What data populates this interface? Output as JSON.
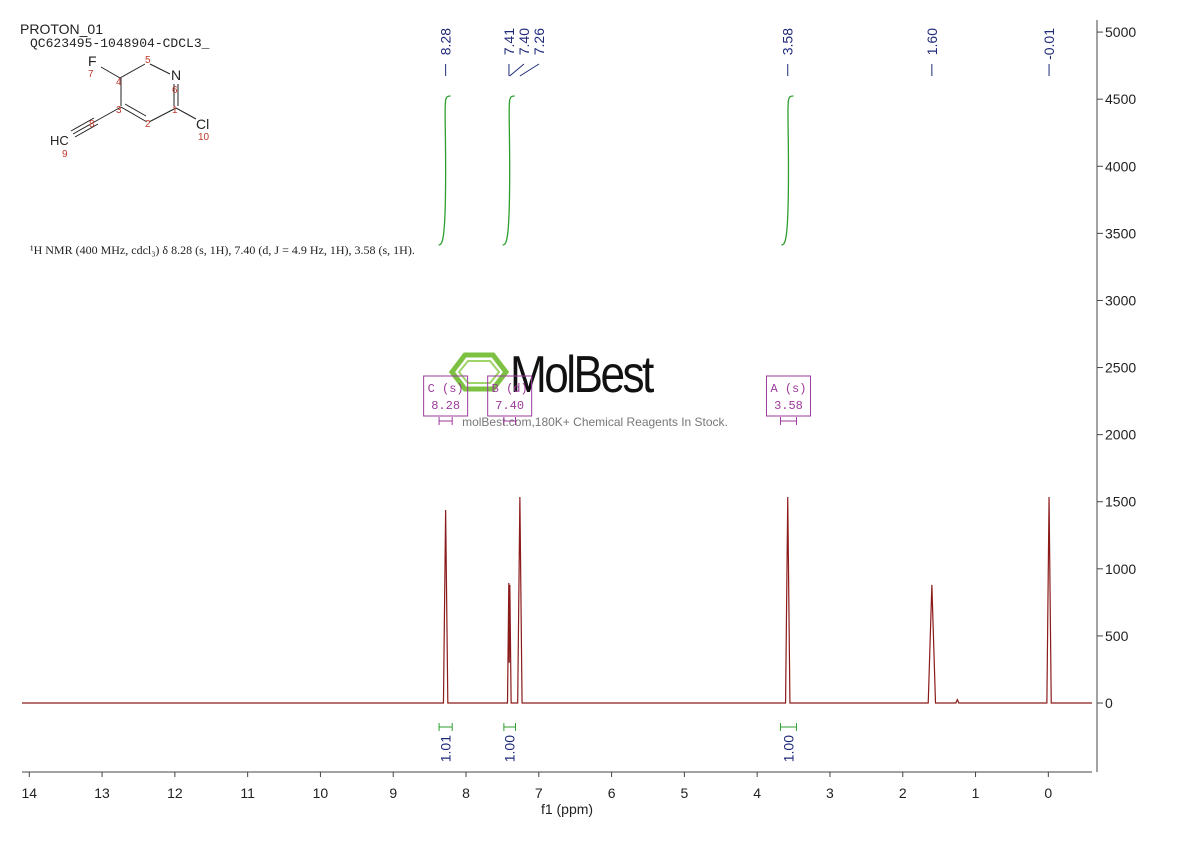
{
  "chart_data": {
    "type": "nmr",
    "title": "PROTON_01",
    "subtitle": "QC623495-1048904-CDCL3_",
    "description": "¹H NMR (400 MHz, cdcl₃) δ 8.28 (s, 1H), 7.40 (d, J = 4.9 Hz, 1H), 3.58 (s, 1H).",
    "x_label": "f1 (ppm)",
    "watermark": "MolBest",
    "watermark_caption": "molBest.com,180K+ Chemical Reagents In Stock.",
    "structure_labels": [
      "F",
      "7",
      "4",
      "5",
      "N",
      "6",
      "3",
      "1",
      "2",
      "Cl",
      "10",
      "8",
      "HC",
      "9"
    ],
    "xlim": [
      14.1,
      -0.6
    ],
    "ylim": [
      -514,
      5090
    ],
    "xticks": [
      14,
      13,
      12,
      11,
      10,
      9,
      8,
      7,
      6,
      5,
      4,
      3,
      2,
      1,
      0
    ],
    "yticks": [
      0,
      500,
      1000,
      1500,
      2000,
      2500,
      3000,
      3500,
      4000,
      4500,
      5000
    ],
    "color": "#8b1a1a",
    "x": [
      14.1,
      8.31,
      8.28,
      8.25,
      7.43,
      7.412,
      7.406,
      7.398,
      7.38,
      7.29,
      7.26,
      7.23,
      3.61,
      3.58,
      3.55,
      1.65,
      1.6,
      1.55,
      1.27,
      1.25,
      1.23,
      0.02,
      -0.01,
      -0.04,
      -0.6
    ],
    "values": [
      0,
      0,
      1438,
      0,
      0,
      894,
      300,
      880,
      0,
      0,
      1535,
      0,
      0,
      1535,
      0,
      0,
      880,
      0,
      0,
      25,
      0,
      0,
      1535,
      0,
      0
    ],
    "peak_labels": [
      8.28,
      7.41,
      {
        "value": 7.4,
        "label": "7.40"
      },
      7.26,
      3.58,
      {
        "value": 1.6,
        "label": "1.60"
      },
      -0.01
    ],
    "integrals": [
      {
        "range": [
          8.37,
          8.19
        ],
        "value": 1.01
      },
      {
        "range": [
          7.48,
          7.32
        ],
        "value": {
          "value": 1,
          "label": "1.00"
        }
      },
      {
        "range": [
          3.68,
          3.46
        ],
        "value": {
          "value": 1,
          "label": "1.00"
        }
      }
    ],
    "multiplets": [
      {
        "name": "C (s)",
        "shift": "8.28",
        "range": [
          8.37,
          8.19
        ]
      },
      {
        "name": "B (d)",
        "shift": "7.40",
        "range": [
          7.48,
          7.32
        ]
      },
      {
        "name": "A (s)",
        "shift": "3.58",
        "range": [
          3.68,
          3.46
        ]
      }
    ]
  }
}
